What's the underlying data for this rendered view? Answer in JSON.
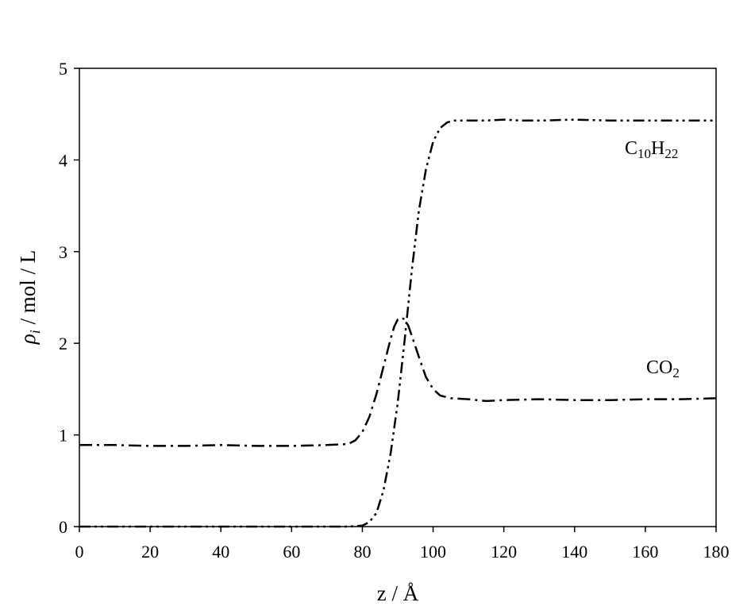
{
  "chart_data": {
    "type": "line",
    "title": "",
    "xlabel": "z / Å",
    "ylabel": {
      "symbol": "ρ",
      "subscript": "i",
      "rest": " / mol / L"
    },
    "xlim": [
      0,
      180
    ],
    "ylim": [
      0,
      5
    ],
    "x_ticks": [
      0,
      20,
      40,
      60,
      80,
      100,
      120,
      140,
      160,
      180
    ],
    "y_ticks": [
      0,
      1,
      2,
      3,
      4,
      5
    ],
    "grid": false,
    "legend": "none",
    "line_color": "#000000",
    "series": [
      {
        "name": "C10H22",
        "label": {
          "base1": "C",
          "sub1": "10",
          "base2": "H",
          "sub2": "22"
        },
        "dash": "dash-dot-dot",
        "x": [
          0,
          10,
          20,
          30,
          40,
          50,
          60,
          70,
          76,
          80,
          82,
          84,
          86,
          88,
          90,
          92,
          94,
          96,
          98,
          100,
          102,
          104,
          106,
          108,
          110,
          115,
          120,
          125,
          130,
          140,
          150,
          160,
          170,
          180
        ],
        "y": [
          0.0,
          0.0,
          0.0,
          0.0,
          0.0,
          0.0,
          0.0,
          0.0,
          0.0,
          0.01,
          0.05,
          0.15,
          0.4,
          0.8,
          1.35,
          2.05,
          2.8,
          3.45,
          3.9,
          4.2,
          4.35,
          4.41,
          4.43,
          4.43,
          4.43,
          4.43,
          4.44,
          4.43,
          4.43,
          4.44,
          4.43,
          4.43,
          4.43,
          4.43
        ]
      },
      {
        "name": "CO2",
        "label": {
          "base1": "CO",
          "sub1": "2"
        },
        "dash": "dash-dot",
        "x": [
          0,
          10,
          20,
          30,
          40,
          50,
          60,
          70,
          76,
          78,
          80,
          82,
          84,
          86,
          88,
          89,
          90,
          91,
          92,
          93,
          94,
          96,
          98,
          100,
          102,
          105,
          110,
          115,
          120,
          130,
          140,
          150,
          160,
          170,
          180
        ],
        "y": [
          0.89,
          0.89,
          0.88,
          0.88,
          0.89,
          0.88,
          0.88,
          0.89,
          0.9,
          0.94,
          1.03,
          1.2,
          1.45,
          1.75,
          2.05,
          2.18,
          2.26,
          2.28,
          2.26,
          2.19,
          2.08,
          1.85,
          1.63,
          1.5,
          1.43,
          1.4,
          1.39,
          1.37,
          1.38,
          1.39,
          1.38,
          1.38,
          1.39,
          1.39,
          1.4
        ]
      }
    ]
  }
}
